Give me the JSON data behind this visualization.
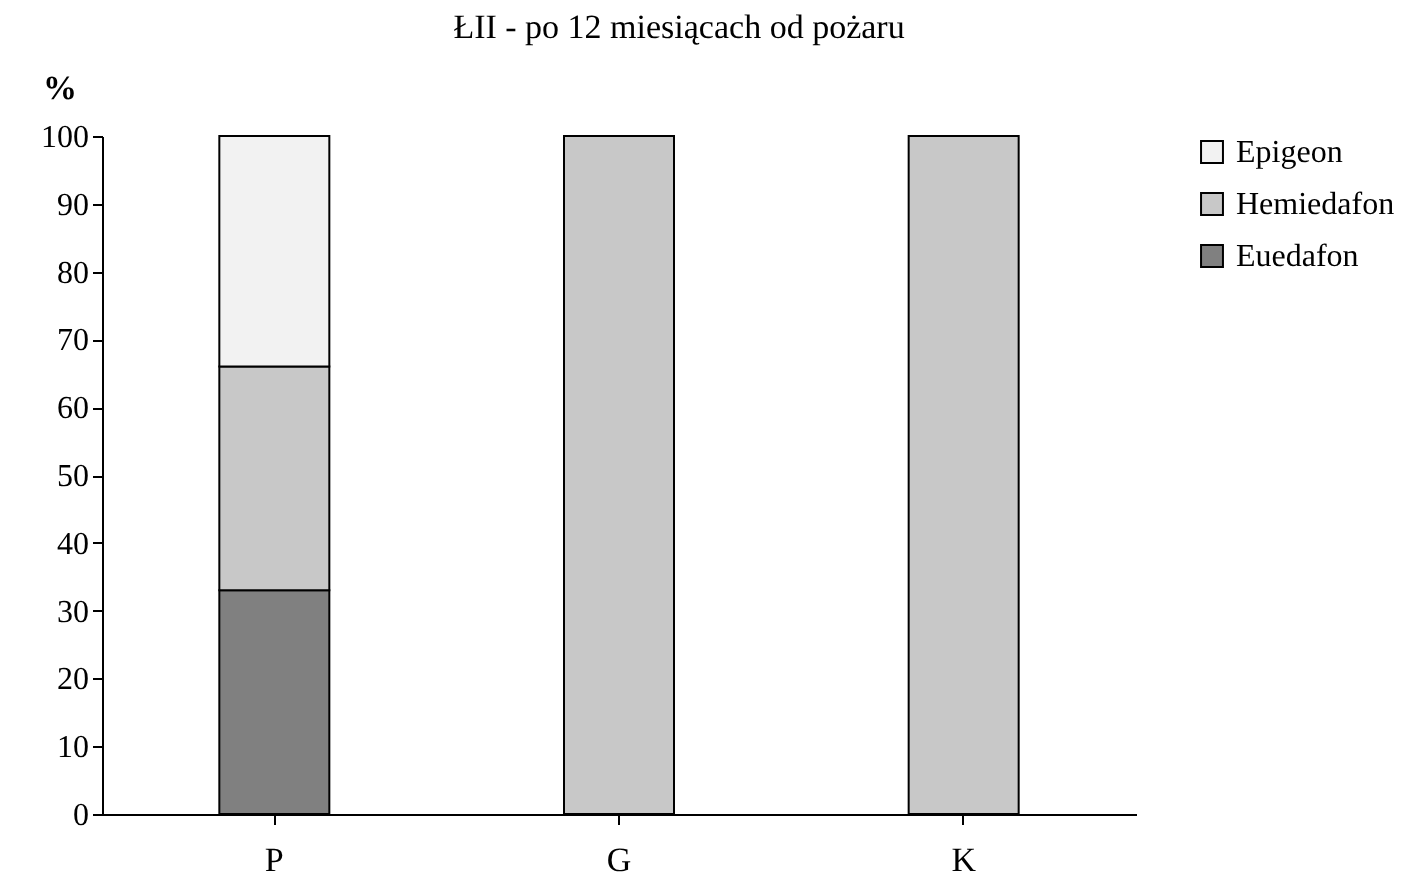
{
  "chart_data": {
    "type": "bar",
    "title": "ŁII - po 12 miesiącach od pożaru",
    "ylabel": "%",
    "categories": [
      "P",
      "G",
      "K"
    ],
    "stacked": true,
    "ylim": [
      0,
      100
    ],
    "yticks": [
      0,
      10,
      20,
      30,
      40,
      50,
      60,
      70,
      80,
      90,
      100
    ],
    "grid": false,
    "legend": "right",
    "series": [
      {
        "name": "Euedafon",
        "color": "#808080",
        "values": [
          33,
          0,
          0
        ]
      },
      {
        "name": "Hemiedafon",
        "color": "#c8c8c8",
        "values": [
          33,
          100,
          100
        ]
      },
      {
        "name": "Epigeon",
        "color": "#f2f2f2",
        "values": [
          34,
          0,
          0
        ]
      }
    ]
  }
}
